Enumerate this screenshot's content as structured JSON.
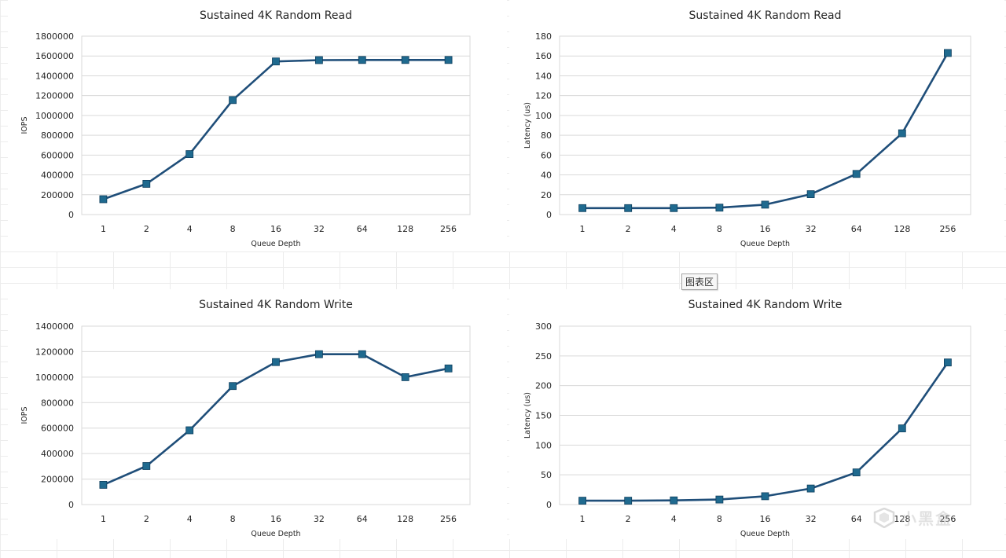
{
  "colors": {
    "series": "#1f4e79",
    "marker": "#1f6a8f"
  },
  "chart_area_badge": "图表区",
  "watermark": {
    "text": "小黑盒",
    "icon": "heybox-logo-icon"
  },
  "chart_data": [
    {
      "type": "line",
      "title": "Sustained 4K Random Read",
      "xlabel": "Queue Depth",
      "ylabel": "IOPS",
      "categories": [
        "1",
        "2",
        "4",
        "8",
        "16",
        "32",
        "64",
        "128",
        "256"
      ],
      "values": [
        155000,
        310000,
        610000,
        1155000,
        1545000,
        1558000,
        1560000,
        1560000,
        1560000
      ],
      "ylim": [
        0,
        1800000
      ],
      "yticks": [
        0,
        200000,
        400000,
        600000,
        800000,
        1000000,
        1200000,
        1400000,
        1600000,
        1800000
      ],
      "grid": true,
      "legend": "none"
    },
    {
      "type": "line",
      "title": "Sustained 4K Random Read",
      "xlabel": "Queue Depth",
      "ylabel": "Latency (us)",
      "categories": [
        "1",
        "2",
        "4",
        "8",
        "16",
        "32",
        "64",
        "128",
        "256"
      ],
      "values": [
        6.5,
        6.5,
        6.5,
        7,
        10,
        20.5,
        41,
        82,
        163
      ],
      "ylim": [
        0,
        180
      ],
      "yticks": [
        0,
        20,
        40,
        60,
        80,
        100,
        120,
        140,
        160,
        180
      ],
      "grid": true,
      "legend": "none"
    },
    {
      "type": "line",
      "title": "Sustained 4K Random Write",
      "xlabel": "Queue Depth",
      "ylabel": "IOPS",
      "categories": [
        "1",
        "2",
        "4",
        "8",
        "16",
        "32",
        "64",
        "128",
        "256"
      ],
      "values": [
        155000,
        302000,
        583000,
        930000,
        1118000,
        1180000,
        1180000,
        1000000,
        1068000
      ],
      "ylim": [
        0,
        1400000
      ],
      "yticks": [
        0,
        200000,
        400000,
        600000,
        800000,
        1000000,
        1200000,
        1400000
      ],
      "grid": true,
      "legend": "none"
    },
    {
      "type": "line",
      "title": "Sustained 4K Random Write",
      "xlabel": "Queue Depth",
      "ylabel": "Latency (us)",
      "categories": [
        "1",
        "2",
        "4",
        "8",
        "16",
        "32",
        "64",
        "128",
        "256"
      ],
      "values": [
        6.5,
        6.5,
        7,
        8.5,
        14,
        27,
        54,
        128,
        239
      ],
      "ylim": [
        0,
        300
      ],
      "yticks": [
        0,
        50,
        100,
        150,
        200,
        250,
        300
      ],
      "grid": true,
      "legend": "none"
    }
  ]
}
